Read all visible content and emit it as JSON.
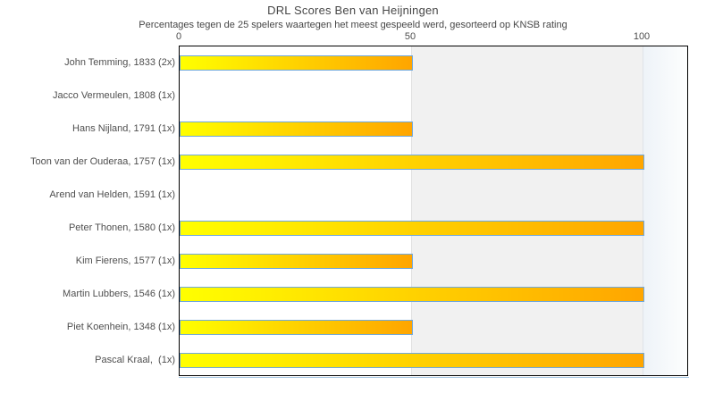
{
  "chart_data": {
    "type": "bar",
    "orientation": "horizontal",
    "title": "DRL Scores Ben van Heijningen",
    "subtitle": "Percentages tegen de 25 spelers waartegen het meest gespeeld werd, gesorteerd op KNSB rating",
    "categories": [
      "John Temming, 1833 (2x)",
      "Jacco Vermeulen, 1808 (1x)",
      "Hans Nijland, 1791 (1x)",
      "Toon van der Ouderaa, 1757 (1x)",
      "Arend van Helden, 1591 (1x)",
      "Peter Thonen, 1580 (1x)",
      "Kim Fierens, 1577 (1x)",
      "Martin Lubbers, 1546 (1x)",
      "Piet Koenhein, 1348 (1x)",
      "Pascal Kraal,  (1x)"
    ],
    "values": [
      50,
      0,
      50,
      100,
      0,
      100,
      50,
      100,
      50,
      100
    ],
    "xlabel": "",
    "ylabel": "",
    "xlim": [
      0,
      110
    ],
    "xticks": [
      0,
      50,
      100
    ],
    "grid": "off",
    "legend": "none",
    "colors": {
      "bar_gradient_start": "#ffff00",
      "bar_gradient_end": "#ffa500",
      "bar_border": "#6fa8dc",
      "band_white": "#ffffff",
      "band_gray": "#f1f1f1",
      "plot_border": "#000000",
      "text": "#4f4f4f"
    }
  }
}
